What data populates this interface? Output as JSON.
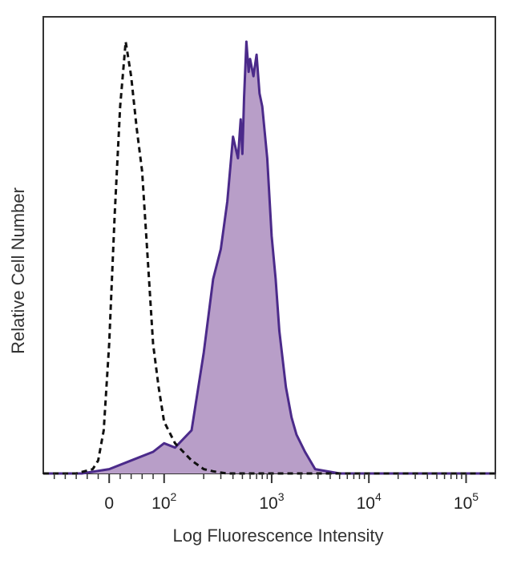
{
  "chart_data": {
    "type": "area",
    "xlabel": "Log Fluorescence Intensity",
    "ylabel": "Relative Cell Number",
    "x_scale": "biexponential",
    "xlim": [
      -120,
      200000
    ],
    "ylim": [
      0,
      100
    ],
    "grid": false,
    "x_ticks": [
      {
        "value": 0,
        "base": "0",
        "exp": ""
      },
      {
        "value": 100,
        "base": "10",
        "exp": "2"
      },
      {
        "value": 1000,
        "base": "10",
        "exp": "3"
      },
      {
        "value": 10000,
        "base": "10",
        "exp": "4"
      },
      {
        "value": 100000,
        "base": "10",
        "exp": "5"
      }
    ],
    "series": [
      {
        "style": "dashed-outline",
        "color": "#111111",
        "x": [
          -120,
          -60,
          -30,
          -20,
          -10,
          0,
          10,
          20,
          30,
          40,
          50,
          60,
          70,
          80,
          90,
          100,
          120,
          150,
          200,
          250,
          300,
          350,
          500,
          1000,
          10000,
          200000
        ],
        "y": [
          0,
          0,
          1,
          3,
          10,
          30,
          60,
          85,
          100,
          92,
          80,
          70,
          50,
          30,
          20,
          12,
          7,
          3,
          1,
          0.5,
          0.2,
          0,
          0,
          0,
          0,
          0
        ]
      },
      {
        "style": "filled",
        "color": "#4b2a8a",
        "fill": "#b89ec8",
        "x": [
          -120,
          -50,
          0,
          40,
          80,
          100,
          120,
          150,
          200,
          250,
          300,
          350,
          400,
          450,
          480,
          500,
          520,
          550,
          580,
          600,
          650,
          700,
          750,
          800,
          900,
          1000,
          1100,
          1200,
          1400,
          1600,
          1800,
          2200,
          2800,
          5000,
          20000,
          200000
        ],
        "y": [
          0,
          0,
          1,
          3,
          5,
          7,
          6,
          10,
          28,
          45,
          52,
          63,
          78,
          73,
          82,
          74,
          87,
          100,
          93,
          96,
          92,
          97,
          88,
          85,
          73,
          55,
          45,
          33,
          20,
          13,
          9,
          5,
          1,
          0,
          0,
          0
        ]
      }
    ]
  }
}
